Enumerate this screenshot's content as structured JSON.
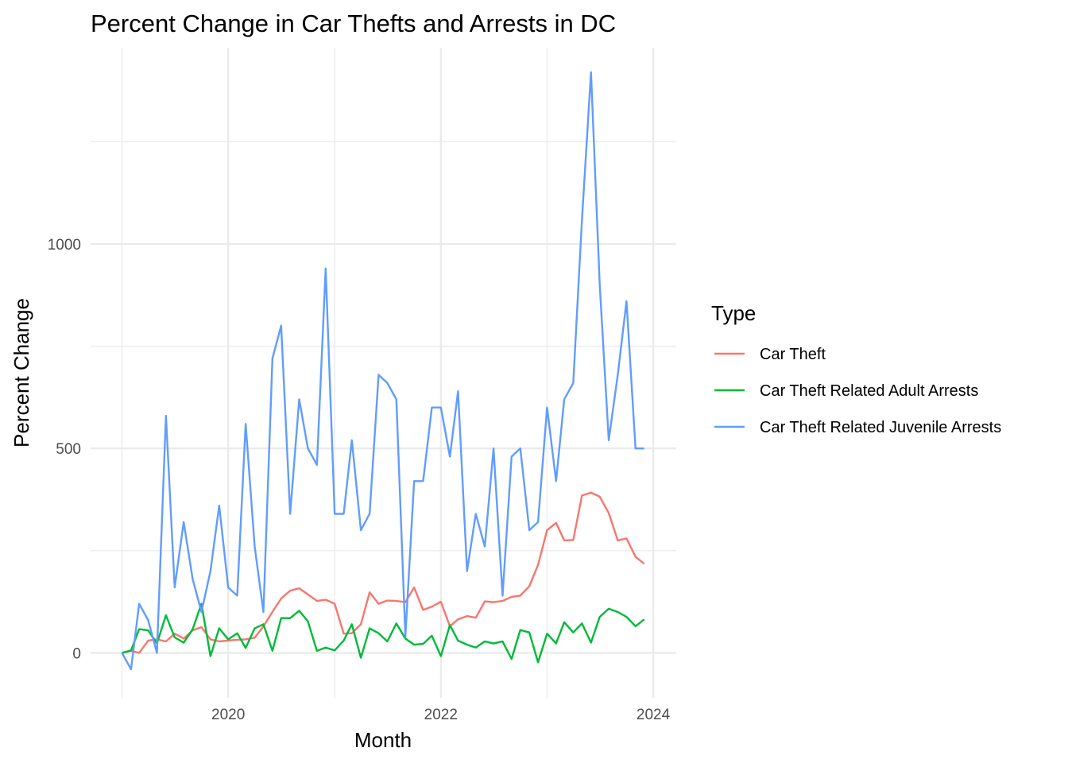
{
  "chart_data": {
    "type": "line",
    "title": "Percent Change in Car Thefts and Arrests in DC",
    "xlabel": "Month",
    "ylabel": "Percent Change",
    "x_axis": {
      "kind": "date",
      "range": [
        "2018-09-15",
        "2024-03-20"
      ],
      "ticks": [
        {
          "value": "2020-01-01",
          "label": "2020"
        },
        {
          "value": "2022-01-01",
          "label": "2022"
        },
        {
          "value": "2024-01-01",
          "label": "2024"
        }
      ],
      "minor_ticks": [
        "2019-01-01",
        "2021-01-01",
        "2023-01-01"
      ]
    },
    "y_axis": {
      "range": [
        -110,
        1480
      ],
      "ticks": [
        {
          "value": 0,
          "label": "0"
        },
        {
          "value": 500,
          "label": "500"
        },
        {
          "value": 1000,
          "label": "1000"
        }
      ],
      "minor_ticks": [
        250,
        750,
        1250
      ]
    },
    "grid": true,
    "legend": {
      "title": "Type",
      "placement": "right"
    },
    "x": [
      "2019-01",
      "2019-02",
      "2019-03",
      "2019-04",
      "2019-05",
      "2019-06",
      "2019-07",
      "2019-08",
      "2019-09",
      "2019-10",
      "2019-11",
      "2019-12",
      "2020-01",
      "2020-02",
      "2020-03",
      "2020-04",
      "2020-05",
      "2020-06",
      "2020-07",
      "2020-08",
      "2020-09",
      "2020-10",
      "2020-11",
      "2020-12",
      "2021-01",
      "2021-02",
      "2021-03",
      "2021-04",
      "2021-05",
      "2021-06",
      "2021-07",
      "2021-08",
      "2021-09",
      "2021-10",
      "2021-11",
      "2021-12",
      "2022-01",
      "2022-02",
      "2022-03",
      "2022-04",
      "2022-05",
      "2022-06",
      "2022-07",
      "2022-08",
      "2022-09",
      "2022-10",
      "2022-11",
      "2022-12",
      "2023-01",
      "2023-02",
      "2023-03",
      "2023-04",
      "2023-05",
      "2023-06",
      "2023-07",
      "2023-08",
      "2023-09",
      "2023-10",
      "2023-11",
      "2023-12"
    ],
    "series": [
      {
        "name": "Car Theft",
        "color": "#F8766D",
        "values": [
          0,
          5,
          0,
          30,
          33,
          28,
          47,
          35,
          55,
          63,
          33,
          28,
          30,
          32,
          33,
          37,
          65,
          100,
          133,
          152,
          158,
          143,
          127,
          130,
          120,
          47,
          48,
          70,
          148,
          120,
          128,
          127,
          124,
          160,
          105,
          113,
          125,
          65,
          82,
          90,
          86,
          126,
          124,
          127,
          137,
          140,
          163,
          215,
          300,
          318,
          275,
          276,
          385,
          392,
          382,
          342,
          275,
          280,
          235,
          218
        ]
      },
      {
        "name": "Car Theft Related Adult Arrests",
        "color": "#00BA38",
        "values": [
          0,
          6,
          58,
          55,
          23,
          92,
          38,
          25,
          58,
          120,
          -8,
          60,
          33,
          48,
          12,
          60,
          70,
          5,
          85,
          85,
          103,
          77,
          5,
          13,
          6,
          30,
          70,
          -12,
          60,
          48,
          28,
          72,
          35,
          20,
          22,
          42,
          -8,
          68,
          30,
          20,
          13,
          28,
          23,
          28,
          -15,
          56,
          50,
          -23,
          47,
          23,
          75,
          50,
          72,
          25,
          88,
          108,
          100,
          88,
          65,
          82
        ]
      },
      {
        "name": "Car Theft Related Juvenile Arrests",
        "color": "#619CFF",
        "values": [
          0,
          -40,
          120,
          80,
          0,
          580,
          160,
          320,
          180,
          100,
          200,
          360,
          160,
          140,
          560,
          260,
          100,
          720,
          800,
          340,
          620,
          500,
          460,
          940,
          340,
          340,
          520,
          300,
          340,
          680,
          660,
          620,
          40,
          420,
          420,
          600,
          600,
          480,
          640,
          200,
          340,
          260,
          500,
          140,
          480,
          500,
          300,
          320,
          600,
          420,
          620,
          660,
          1060,
          1420,
          900,
          520,
          680,
          860,
          500,
          500
        ]
      }
    ]
  }
}
